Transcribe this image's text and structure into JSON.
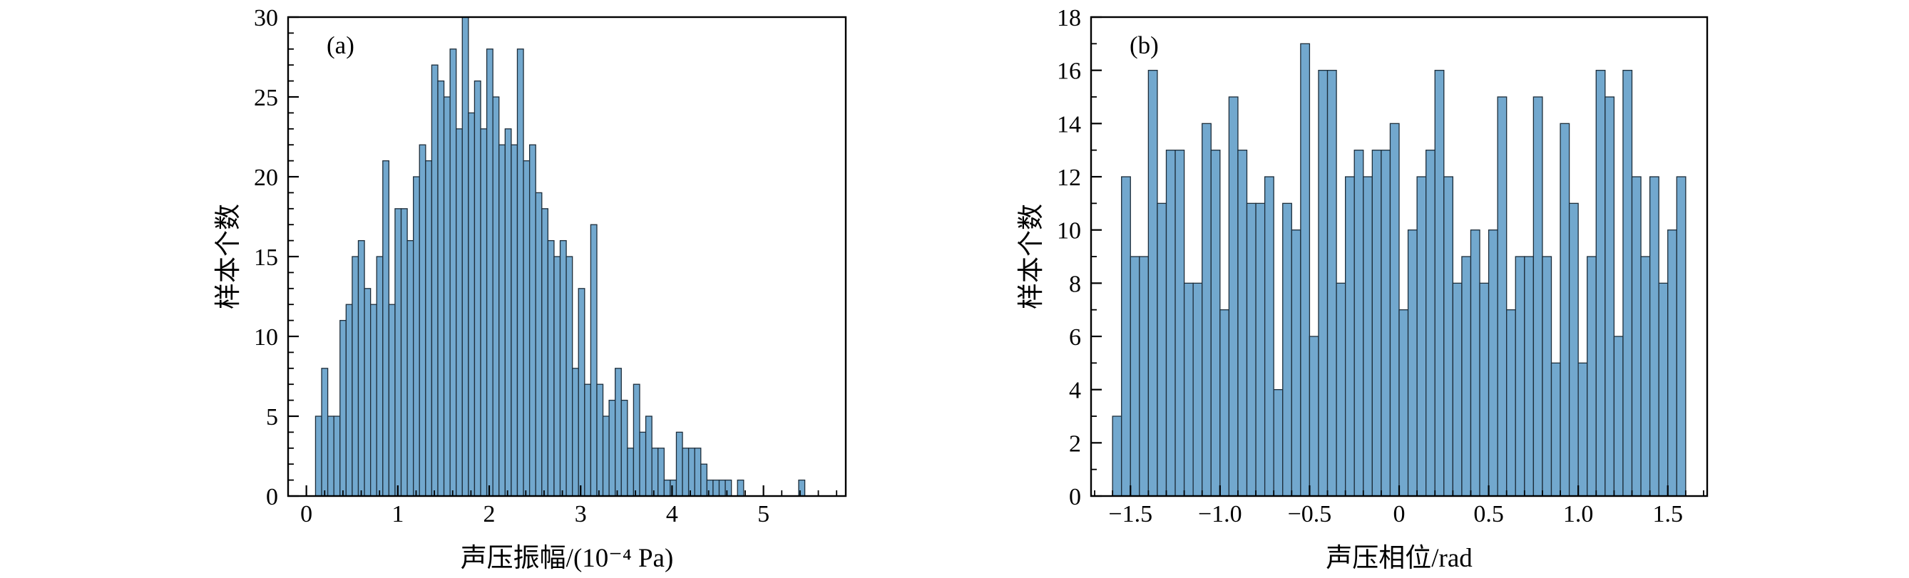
{
  "figure": {
    "background": "#ffffff",
    "bar_fill": "#72a8ce",
    "bar_edge": "#1d2d3a",
    "axis_color": "#000000"
  },
  "chart_data": [
    {
      "type": "bar",
      "panel_label": "(a)",
      "xlabel": "声压振幅/(10⁻⁴ Pa)",
      "ylabel": "样本个数",
      "xlim": [
        -0.2,
        5.9
      ],
      "ylim": [
        0,
        30
      ],
      "x_ticks": [
        0,
        1,
        2,
        3,
        4,
        5
      ],
      "x_tick_labels": [
        "0",
        "1",
        "2",
        "3",
        "4",
        "5"
      ],
      "y_ticks": [
        0,
        5,
        10,
        15,
        20,
        25,
        30
      ],
      "y_tick_labels": [
        "0",
        "5",
        "10",
        "15",
        "20",
        "25",
        "30"
      ],
      "x_minor_step": 0.2,
      "y_minor_step": 1,
      "grid": false,
      "bin_start": 0.1,
      "bin_width": 0.0669,
      "values": [
        5,
        8,
        5,
        5,
        11,
        12,
        15,
        16,
        13,
        12,
        15,
        21,
        12,
        18,
        18,
        16,
        20,
        22,
        21,
        27,
        26,
        25,
        28,
        23,
        30,
        24,
        26,
        23,
        28,
        25,
        22,
        23,
        22,
        28,
        21,
        22,
        19,
        18,
        16,
        15,
        16,
        15,
        8,
        13,
        7,
        17,
        7,
        5,
        6,
        8,
        6,
        3,
        7,
        4,
        5,
        3,
        3,
        1,
        1,
        4,
        3,
        3,
        3,
        2,
        1,
        1,
        1,
        1,
        0,
        1,
        0,
        0,
        0,
        0,
        0,
        0,
        0,
        0,
        0,
        1
      ]
    },
    {
      "type": "bar",
      "panel_label": "(b)",
      "xlabel": "声压相位/rad",
      "ylabel": "样本个数",
      "xlim": [
        -1.72,
        1.72
      ],
      "ylim": [
        0,
        18
      ],
      "x_ticks": [
        -1.5,
        -1.0,
        -0.5,
        0,
        0.5,
        1.0,
        1.5
      ],
      "x_tick_labels": [
        "−1.5",
        "−1.0",
        "−0.5",
        "0",
        "0.5",
        "1.0",
        "1.5"
      ],
      "y_ticks": [
        0,
        2,
        4,
        6,
        8,
        10,
        12,
        14,
        16,
        18
      ],
      "y_tick_labels": [
        "0",
        "2",
        "4",
        "6",
        "8",
        "10",
        "12",
        "14",
        "16",
        "18"
      ],
      "x_minor_step": 0.1,
      "y_minor_step": 1,
      "grid": false,
      "bin_start": -1.6,
      "bin_width": 0.05,
      "values": [
        3,
        12,
        9,
        9,
        16,
        11,
        13,
        13,
        8,
        8,
        14,
        13,
        7,
        15,
        13,
        11,
        11,
        12,
        4,
        11,
        10,
        17,
        6,
        16,
        16,
        8,
        12,
        13,
        12,
        13,
        13,
        14,
        7,
        10,
        12,
        13,
        16,
        12,
        8,
        9,
        10,
        8,
        10,
        15,
        7,
        9,
        9,
        15,
        9,
        5,
        14,
        11,
        5,
        9,
        16,
        15,
        6,
        16,
        12,
        9,
        12,
        8,
        10,
        12
      ]
    }
  ]
}
